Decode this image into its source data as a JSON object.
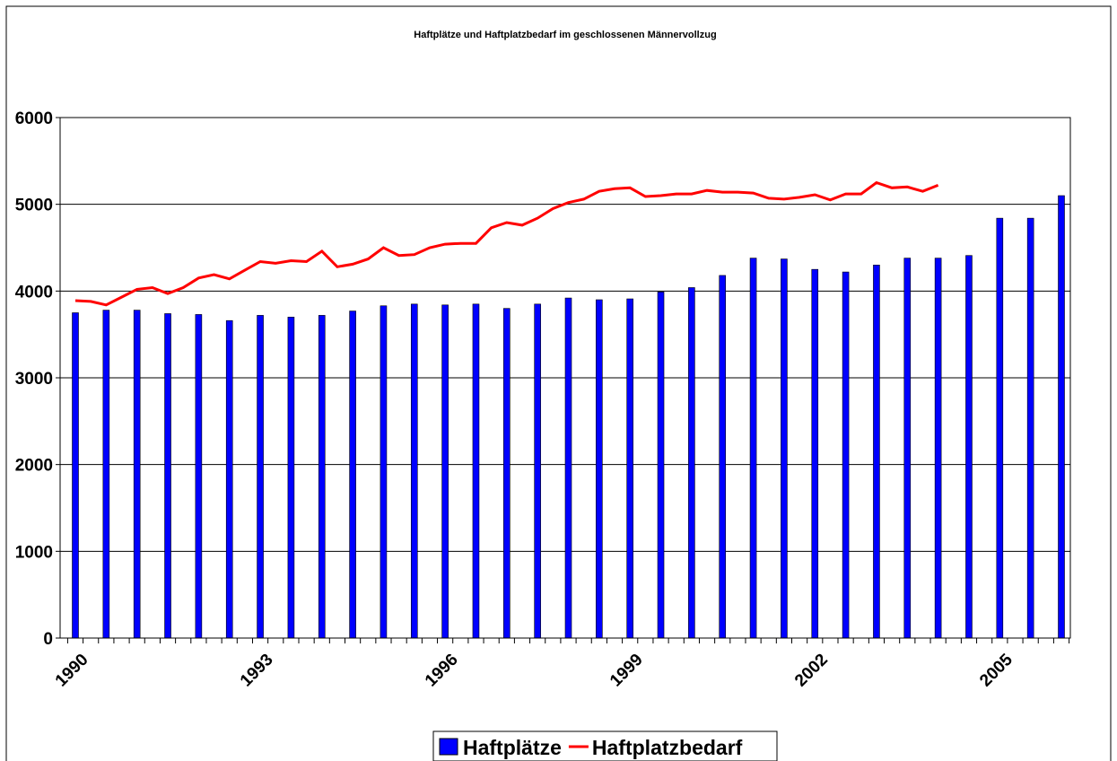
{
  "chart_data": {
    "type": "bar-line",
    "title": "Haftplätze und Haftplatzbedarf im geschlossenen Männervollzug",
    "categories": [
      "1990",
      null,
      null,
      null,
      null,
      null,
      null,
      null,
      null,
      null,
      null,
      null,
      "1993",
      null,
      null,
      null,
      null,
      null,
      null,
      null,
      null,
      null,
      null,
      null,
      "1996",
      null,
      null,
      null,
      null,
      null,
      null,
      null,
      null,
      null,
      null,
      null,
      "1999",
      null,
      null,
      null,
      null,
      null,
      null,
      null,
      null,
      null,
      null,
      null,
      "2002",
      null,
      null,
      null,
      null,
      null,
      null,
      null,
      null,
      null,
      null,
      null,
      "2005",
      null,
      null,
      null,
      null
    ],
    "series": [
      {
        "name": "Haftplätze",
        "type": "bar",
        "color": "#0000ff",
        "values": [
          3750,
          null,
          3780,
          null,
          3780,
          null,
          3740,
          null,
          3730,
          null,
          3660,
          null,
          3720,
          null,
          3700,
          null,
          3720,
          null,
          3770,
          null,
          3830,
          null,
          3850,
          null,
          3840,
          null,
          3850,
          null,
          3800,
          null,
          3850,
          null,
          3920,
          null,
          3900,
          null,
          3910,
          null,
          3990,
          null,
          4040,
          null,
          4180,
          null,
          4380,
          null,
          4370,
          null,
          4250,
          null,
          4220,
          null,
          4300,
          null,
          4380,
          null,
          4380,
          null,
          4410,
          null,
          4840,
          null,
          4840,
          null,
          5100
        ]
      },
      {
        "name": "Haftplatzbedarf",
        "type": "line",
        "color": "#ff0000",
        "values": [
          3890,
          3880,
          3840,
          3930,
          4020,
          4040,
          3970,
          4040,
          4150,
          4190,
          4140,
          4240,
          4340,
          4320,
          4350,
          4340,
          4460,
          4280,
          4310,
          4370,
          4500,
          4410,
          4420,
          4500,
          4540,
          4550,
          4550,
          4730,
          4790,
          4760,
          4840,
          4950,
          5020,
          5060,
          5150,
          5180,
          5190,
          5090,
          5100,
          5120,
          5120,
          5160,
          5140,
          5140,
          5130,
          5070,
          5060,
          5080,
          5110,
          5050,
          5120,
          5120,
          5250,
          5190,
          5200,
          5150,
          5220,
          null,
          null,
          null,
          null,
          null,
          null,
          null,
          null
        ]
      }
    ],
    "ylim": [
      0,
      6000
    ],
    "yticks": [
      0,
      1000,
      2000,
      3000,
      4000,
      5000,
      6000
    ],
    "grid": true
  }
}
